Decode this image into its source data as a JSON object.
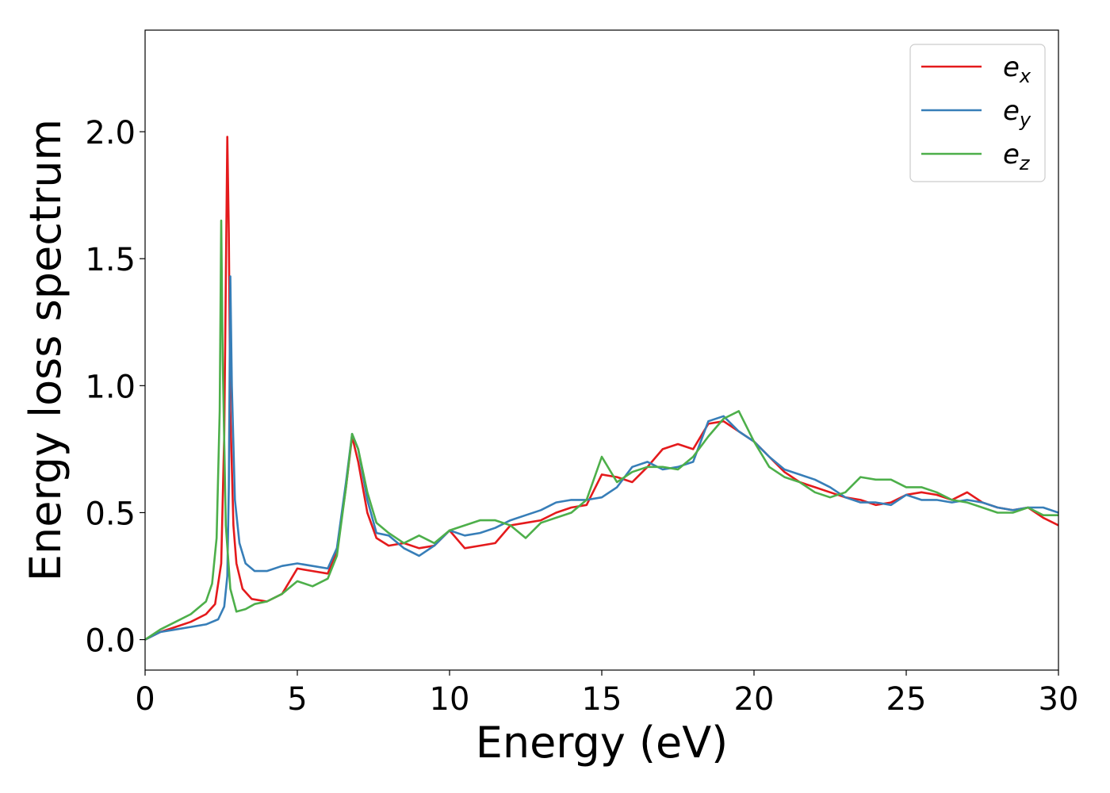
{
  "chart_data": {
    "type": "line",
    "xlabel": "Energy (eV)",
    "ylabel": "Energy loss spectrum",
    "xlim": [
      0,
      30
    ],
    "ylim": [
      -0.12,
      2.4
    ],
    "xticks": [
      0,
      5,
      10,
      15,
      20,
      25,
      30
    ],
    "xtick_labels": [
      "0",
      "5",
      "10",
      "15",
      "20",
      "25",
      "30"
    ],
    "yticks": [
      0.0,
      0.5,
      1.0,
      1.5,
      2.0
    ],
    "ytick_labels": [
      "0.0",
      "0.5",
      "1.0",
      "1.5",
      "2.0"
    ],
    "grid": false,
    "legend_position": "top-right",
    "series": [
      {
        "name": "e",
        "subscript": "x",
        "color": "#e41a1c",
        "x": [
          0,
          0.5,
          1,
          1.5,
          2,
          2.3,
          2.5,
          2.6,
          2.7,
          2.75,
          2.8,
          2.9,
          3.0,
          3.2,
          3.5,
          4.0,
          4.5,
          5.0,
          5.5,
          6.0,
          6.3,
          6.6,
          6.8,
          7.0,
          7.3,
          7.6,
          8.0,
          8.5,
          9.0,
          9.5,
          10.0,
          10.5,
          11.0,
          11.5,
          12.0,
          12.5,
          13.0,
          13.5,
          14.0,
          14.5,
          15.0,
          15.5,
          16.0,
          16.5,
          17.0,
          17.5,
          18.0,
          18.5,
          19.0,
          19.5,
          20.0,
          20.5,
          21.0,
          21.5,
          22.0,
          22.5,
          23.0,
          23.5,
          24.0,
          24.5,
          25.0,
          25.5,
          26.0,
          26.5,
          27.0,
          27.5,
          28.0,
          28.5,
          29.0,
          29.5,
          30.0
        ],
        "values": [
          0.0,
          0.03,
          0.05,
          0.07,
          0.1,
          0.14,
          0.3,
          0.8,
          1.98,
          1.6,
          0.9,
          0.45,
          0.3,
          0.2,
          0.16,
          0.15,
          0.18,
          0.28,
          0.27,
          0.26,
          0.35,
          0.6,
          0.8,
          0.7,
          0.5,
          0.4,
          0.37,
          0.38,
          0.36,
          0.37,
          0.43,
          0.36,
          0.37,
          0.38,
          0.45,
          0.46,
          0.47,
          0.5,
          0.52,
          0.53,
          0.65,
          0.64,
          0.62,
          0.68,
          0.75,
          0.77,
          0.75,
          0.85,
          0.86,
          0.82,
          0.78,
          0.72,
          0.66,
          0.62,
          0.6,
          0.58,
          0.56,
          0.55,
          0.53,
          0.54,
          0.57,
          0.58,
          0.57,
          0.55,
          0.58,
          0.54,
          0.52,
          0.51,
          0.52,
          0.48,
          0.45
        ]
      },
      {
        "name": "e",
        "subscript": "y",
        "color": "#377eb8",
        "x": [
          0,
          0.5,
          1,
          1.5,
          2,
          2.4,
          2.6,
          2.7,
          2.75,
          2.8,
          2.85,
          2.95,
          3.1,
          3.3,
          3.6,
          4.0,
          4.5,
          5.0,
          5.5,
          6.0,
          6.3,
          6.6,
          6.8,
          7.0,
          7.3,
          7.6,
          8.0,
          8.5,
          9.0,
          9.5,
          10.0,
          10.5,
          11.0,
          11.5,
          12.0,
          12.5,
          13.0,
          13.5,
          14.0,
          14.5,
          15.0,
          15.5,
          16.0,
          16.5,
          17.0,
          17.5,
          18.0,
          18.5,
          19.0,
          19.5,
          20.0,
          20.5,
          21.0,
          21.5,
          22.0,
          22.5,
          23.0,
          23.5,
          24.0,
          24.5,
          25.0,
          25.5,
          26.0,
          26.5,
          27.0,
          27.5,
          28.0,
          28.5,
          29.0,
          29.5,
          30.0
        ],
        "values": [
          0.0,
          0.03,
          0.04,
          0.05,
          0.06,
          0.08,
          0.13,
          0.25,
          0.6,
          1.43,
          1.0,
          0.55,
          0.38,
          0.3,
          0.27,
          0.27,
          0.29,
          0.3,
          0.29,
          0.28,
          0.36,
          0.62,
          0.81,
          0.75,
          0.55,
          0.42,
          0.41,
          0.36,
          0.33,
          0.37,
          0.43,
          0.41,
          0.42,
          0.44,
          0.47,
          0.49,
          0.51,
          0.54,
          0.55,
          0.55,
          0.56,
          0.6,
          0.68,
          0.7,
          0.67,
          0.68,
          0.7,
          0.86,
          0.88,
          0.82,
          0.78,
          0.72,
          0.67,
          0.65,
          0.63,
          0.6,
          0.56,
          0.54,
          0.54,
          0.53,
          0.57,
          0.55,
          0.55,
          0.54,
          0.55,
          0.54,
          0.52,
          0.51,
          0.52,
          0.52,
          0.5
        ]
      },
      {
        "name": "e",
        "subscript": "z",
        "color": "#4daf4a",
        "x": [
          0,
          0.5,
          1,
          1.5,
          2,
          2.2,
          2.35,
          2.45,
          2.5,
          2.55,
          2.65,
          2.8,
          3.0,
          3.3,
          3.6,
          4.0,
          4.5,
          5.0,
          5.5,
          6.0,
          6.3,
          6.6,
          6.8,
          7.0,
          7.3,
          7.6,
          8.0,
          8.5,
          9.0,
          9.5,
          10.0,
          10.5,
          11.0,
          11.5,
          12.0,
          12.5,
          13.0,
          13.5,
          14.0,
          14.5,
          15.0,
          15.5,
          16.0,
          16.5,
          17.0,
          17.5,
          18.0,
          18.5,
          19.0,
          19.5,
          20.0,
          20.5,
          21.0,
          21.5,
          22.0,
          22.5,
          23.0,
          23.5,
          24.0,
          24.5,
          25.0,
          25.5,
          26.0,
          26.5,
          27.0,
          27.5,
          28.0,
          28.5,
          29.0,
          29.5,
          30.0
        ],
        "values": [
          0.0,
          0.04,
          0.07,
          0.1,
          0.15,
          0.22,
          0.4,
          0.9,
          1.65,
          1.1,
          0.45,
          0.2,
          0.11,
          0.12,
          0.14,
          0.15,
          0.18,
          0.23,
          0.21,
          0.24,
          0.33,
          0.6,
          0.81,
          0.75,
          0.58,
          0.46,
          0.42,
          0.38,
          0.41,
          0.38,
          0.43,
          0.45,
          0.47,
          0.47,
          0.45,
          0.4,
          0.46,
          0.48,
          0.5,
          0.55,
          0.72,
          0.62,
          0.66,
          0.68,
          0.68,
          0.67,
          0.72,
          0.8,
          0.87,
          0.9,
          0.78,
          0.68,
          0.64,
          0.62,
          0.58,
          0.56,
          0.58,
          0.64,
          0.63,
          0.63,
          0.6,
          0.6,
          0.58,
          0.55,
          0.54,
          0.52,
          0.5,
          0.5,
          0.52,
          0.49,
          0.49
        ]
      }
    ]
  }
}
